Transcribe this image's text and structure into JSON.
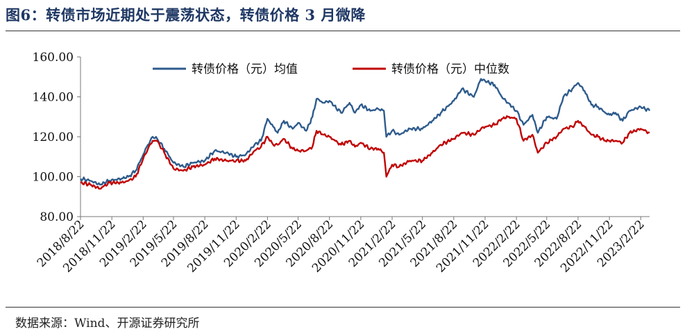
{
  "title": "图6：转债市场近期处于震荡状态，转债价格 3 月微降",
  "source": "数据来源：Wind、开源证券研究所",
  "chart_data": {
    "type": "line",
    "title": "图6：转债市场近期处于震荡状态，转债价格 3 月微降",
    "xlabel": "",
    "ylabel": "",
    "ylim": [
      80,
      160
    ],
    "yticks": [
      "80.00",
      "100.00",
      "120.00",
      "140.00",
      "160.00"
    ],
    "xlim": [
      "2018-08-22",
      "2023-03-20"
    ],
    "xtick_labels": [
      "2018/8/22",
      "2018/11/22",
      "2019/2/22",
      "2019/5/22",
      "2019/8/22",
      "2019/11/22",
      "2020/2/22",
      "2020/5/22",
      "2020/8/22",
      "2020/11/22",
      "2021/2/22",
      "2021/5/22",
      "2021/8/22",
      "2021/11/22",
      "2022/2/22",
      "2022/5/22",
      "2022/8/22",
      "2022/11/22",
      "2023/2/22"
    ],
    "xtick_dates": [
      "2018-08-22",
      "2018-11-22",
      "2019-02-22",
      "2019-05-22",
      "2019-08-22",
      "2019-11-22",
      "2020-02-22",
      "2020-05-22",
      "2020-08-22",
      "2020-11-22",
      "2021-02-22",
      "2021-05-22",
      "2021-08-22",
      "2021-11-22",
      "2022-02-22",
      "2022-05-22",
      "2022-08-22",
      "2022-11-22",
      "2023-02-22"
    ],
    "grid": false,
    "legend_position": "top",
    "series": [
      {
        "name": "转债价格（元）均值",
        "color": "#2e5b8c",
        "x": [
          "2018-08-22",
          "2018-09-20",
          "2018-10-18",
          "2018-11-15",
          "2018-12-20",
          "2019-01-10",
          "2019-01-31",
          "2019-02-22",
          "2019-03-08",
          "2019-03-22",
          "2019-04-04",
          "2019-04-25",
          "2019-05-22",
          "2019-06-20",
          "2019-07-18",
          "2019-08-22",
          "2019-09-20",
          "2019-10-24",
          "2019-11-22",
          "2019-12-20",
          "2020-01-15",
          "2020-02-03",
          "2020-02-22",
          "2020-03-10",
          "2020-03-23",
          "2020-04-10",
          "2020-05-06",
          "2020-05-22",
          "2020-06-15",
          "2020-07-03",
          "2020-07-15",
          "2020-08-05",
          "2020-08-22",
          "2020-09-25",
          "2020-10-20",
          "2020-11-05",
          "2020-11-22",
          "2020-12-20",
          "2021-01-12",
          "2021-01-29",
          "2021-02-05",
          "2021-02-22",
          "2021-03-15",
          "2021-04-15",
          "2021-05-22",
          "2021-06-20",
          "2021-07-15",
          "2021-08-22",
          "2021-09-15",
          "2021-10-20",
          "2021-11-10",
          "2021-11-22",
          "2021-12-20",
          "2022-01-10",
          "2022-01-28",
          "2022-02-22",
          "2022-03-15",
          "2022-04-10",
          "2022-04-26",
          "2022-05-22",
          "2022-06-20",
          "2022-07-10",
          "2022-08-05",
          "2022-08-22",
          "2022-09-10",
          "2022-09-30",
          "2022-10-20",
          "2022-11-10",
          "2022-11-22",
          "2022-12-10",
          "2022-12-31",
          "2023-01-20",
          "2023-02-22",
          "2023-03-20"
        ],
        "values": [
          99,
          98,
          96,
          98,
          99,
          100,
          103,
          111,
          116,
          120,
          119,
          114,
          107,
          105,
          107,
          108,
          113,
          112,
          110,
          111,
          116,
          118,
          129,
          125,
          122,
          128,
          124,
          127,
          123,
          130,
          139,
          137,
          138,
          132,
          137,
          132,
          136,
          133,
          134,
          133,
          120,
          123,
          121,
          124,
          124,
          128,
          132,
          138,
          144,
          140,
          149,
          148,
          146,
          140,
          137,
          133,
          126,
          131,
          122,
          130,
          129,
          140,
          144,
          147,
          143,
          136,
          135,
          132,
          131,
          132,
          128,
          133,
          135,
          133
        ]
      },
      {
        "name": "转债价格（元）中位数",
        "color": "#c00000",
        "x": [
          "2018-08-22",
          "2018-09-20",
          "2018-10-18",
          "2018-11-15",
          "2018-12-20",
          "2019-01-10",
          "2019-01-31",
          "2019-02-22",
          "2019-03-08",
          "2019-03-22",
          "2019-04-04",
          "2019-04-25",
          "2019-05-22",
          "2019-06-20",
          "2019-07-18",
          "2019-08-22",
          "2019-09-20",
          "2019-10-24",
          "2019-11-22",
          "2019-12-20",
          "2020-01-15",
          "2020-02-03",
          "2020-02-22",
          "2020-03-10",
          "2020-03-23",
          "2020-04-10",
          "2020-05-06",
          "2020-05-22",
          "2020-06-15",
          "2020-07-03",
          "2020-07-15",
          "2020-08-05",
          "2020-08-22",
          "2020-09-25",
          "2020-10-20",
          "2020-11-05",
          "2020-11-22",
          "2020-12-20",
          "2021-01-12",
          "2021-01-29",
          "2021-02-05",
          "2021-02-22",
          "2021-03-15",
          "2021-04-15",
          "2021-05-22",
          "2021-06-20",
          "2021-07-15",
          "2021-08-22",
          "2021-09-15",
          "2021-10-20",
          "2021-11-10",
          "2021-11-22",
          "2021-12-20",
          "2022-01-10",
          "2022-01-28",
          "2022-02-22",
          "2022-03-15",
          "2022-04-10",
          "2022-04-26",
          "2022-05-22",
          "2022-06-20",
          "2022-07-10",
          "2022-08-05",
          "2022-08-22",
          "2022-09-10",
          "2022-09-30",
          "2022-10-20",
          "2022-11-10",
          "2022-11-22",
          "2022-12-10",
          "2022-12-31",
          "2023-01-20",
          "2023-02-22",
          "2023-03-20"
        ],
        "values": [
          97,
          96,
          94,
          97,
          97,
          98,
          100,
          109,
          114,
          118,
          118,
          112,
          104,
          103,
          105,
          106,
          109,
          108,
          108,
          108,
          113,
          115,
          120,
          116,
          116,
          119,
          114,
          113,
          113,
          115,
          123,
          121,
          120,
          116,
          118,
          115,
          117,
          114,
          114,
          112,
          100,
          106,
          105,
          108,
          108,
          112,
          116,
          119,
          122,
          121,
          124,
          125,
          126,
          129,
          130,
          129,
          118,
          121,
          112,
          117,
          120,
          124,
          125,
          128,
          125,
          121,
          120,
          118,
          118,
          118,
          117,
          122,
          124,
          122
        ]
      }
    ]
  }
}
